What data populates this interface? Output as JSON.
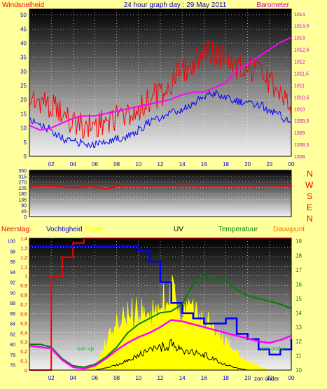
{
  "header": {
    "left_label": "Windsnelheid",
    "title": "24 hour graph day : 29 May 2011",
    "right_label": "Barometer"
  },
  "bottom_header": {
    "neerslag": "Neerslag",
    "vochtigheid": "Vochtigheid",
    "solar": "Solar",
    "uv": "UV",
    "temperatuur": "Temperatuur",
    "dauwpunt": "Dauwpunt"
  },
  "direction_letters": [
    "N",
    "W",
    "S",
    "E",
    "N"
  ],
  "annotations": {
    "sun_up": "sun up",
    "sun_down": "zon onder",
    "sun_down_bottom": "zon onder"
  },
  "colors": {
    "background": "#ffff9c",
    "wind": "#ff0000",
    "gust": "#0000ff",
    "barometer": "#ff00ff",
    "humidity": "#0000ff",
    "rain": "#ff0000",
    "solar": "#ffff00",
    "uv": "#000000",
    "temperature": "#008000",
    "dewpoint": "#ff00ff",
    "label_red": "#ff0000",
    "label_blue": "#0000cc",
    "label_magenta": "#cc00cc",
    "label_green": "#008000",
    "label_orange": "#ff6600"
  },
  "chart_data": [
    {
      "type": "line",
      "name": "wind-barometer",
      "x_ticks": [
        "02",
        "04",
        "06",
        "08",
        "10",
        "12",
        "14",
        "16",
        "18",
        "20",
        "22",
        "00"
      ],
      "y_left_ticks": [
        "0",
        "5",
        "10",
        "15",
        "20",
        "25",
        "30",
        "35",
        "40",
        "45",
        "50"
      ],
      "y_left_range": [
        0,
        52
      ],
      "y_right_ticks": [
        "1008",
        "1008,5",
        "1009",
        "1009,5",
        "1010",
        "1010,5",
        "1011",
        "1011,5",
        "1012",
        "1012,5",
        "1013",
        "1013,5",
        "1014"
      ],
      "y_right_range": [
        1008,
        1014.2
      ],
      "wind_avg_x": [
        0,
        1,
        2,
        3,
        4,
        5,
        6,
        7,
        8,
        9,
        10,
        11,
        12,
        13,
        14,
        15,
        16,
        17,
        18,
        19,
        20,
        21,
        22,
        23,
        24
      ],
      "wind_avg_y": [
        12,
        11,
        9,
        6,
        5,
        4,
        4,
        5,
        6,
        7,
        9,
        12,
        13,
        15,
        16,
        18,
        21,
        22,
        20,
        19,
        18,
        18,
        16,
        14,
        11
      ],
      "wind_gust_y": [
        20,
        19,
        17,
        14,
        11,
        10,
        10,
        12,
        13,
        14,
        16,
        19,
        21,
        25,
        29,
        32,
        38,
        35,
        33,
        31,
        30,
        28,
        25,
        21,
        17
      ],
      "barometer_y": [
        1009.3,
        1009.1,
        1009.2,
        1009.4,
        1009.6,
        1009.7,
        1009.7,
        1009.8,
        1009.9,
        1010.0,
        1010.1,
        1010.2,
        1010.3,
        1010.4,
        1010.6,
        1010.7,
        1010.7,
        1010.9,
        1011.1,
        1011.6,
        1011.9,
        1012.2,
        1012.5,
        1012.8,
        1013.0
      ]
    },
    {
      "type": "line",
      "name": "wind-direction",
      "y_ticks": [
        "0",
        "45",
        "90",
        "135",
        "180",
        "225",
        "270",
        "315",
        "360"
      ],
      "y_range": [
        0,
        360
      ],
      "direction_y": [
        230,
        232,
        235,
        230,
        225,
        230,
        232,
        215,
        235,
        240,
        238,
        240,
        238,
        240,
        242,
        240,
        238,
        240,
        238,
        240,
        238,
        240,
        240,
        238,
        235
      ]
    },
    {
      "type": "line",
      "name": "weather-bottom",
      "x_ticks": [
        "02",
        "04",
        "06",
        "08",
        "10",
        "12",
        "14",
        "16",
        "18",
        "20",
        "22",
        "00"
      ],
      "y_humidity_ticks": [
        "76",
        "78",
        "80",
        "82",
        "84",
        "86",
        "88",
        "90",
        "92",
        "94",
        "96",
        "98",
        "100"
      ],
      "y_humidity_range": [
        75,
        100.5
      ],
      "y_rain_ticks": [
        "0",
        "0,1",
        "0,2",
        "0,3",
        "0,4",
        "0,5",
        "0,6",
        "0,7",
        "0,8",
        "0,9",
        "1",
        "1,1",
        "1,2",
        "1,3",
        "1,4"
      ],
      "y_rain_range": [
        0,
        1.4
      ],
      "y_temp_ticks": [
        "10",
        "11",
        "12",
        "13",
        "14",
        "15",
        "16",
        "17",
        "18",
        "19"
      ],
      "y_temp_range": [
        10,
        19.2
      ],
      "humidity_y": [
        99,
        99,
        99,
        99,
        99,
        99,
        99,
        99,
        99,
        99,
        98,
        96,
        92,
        88,
        86,
        85,
        84,
        84,
        85,
        82,
        81,
        79,
        78,
        79,
        81
      ],
      "rain_y": [
        0,
        0,
        1.0,
        1.2,
        1.35,
        1.4,
        1.4,
        1.4,
        1.4,
        1.4,
        1.4,
        1.4,
        1.4,
        1.4,
        1.4,
        1.4,
        1.4,
        1.4,
        1.4,
        1.4,
        1.4,
        1.4,
        1.4,
        1.4,
        1.4
      ],
      "temperature_y": [
        11.8,
        11.8,
        11.6,
        10.8,
        10.3,
        10.2,
        10.4,
        10.9,
        11.6,
        12.6,
        13.2,
        13.6,
        14.0,
        14.1,
        14.6,
        16.0,
        16.6,
        16.4,
        16.2,
        15.6,
        15.2,
        15.0,
        14.8,
        14.6,
        14.3
      ],
      "dewpoint_y": [
        11.7,
        11.6,
        11.5,
        10.7,
        10.2,
        10.1,
        10.3,
        10.8,
        11.4,
        11.9,
        12.3,
        12.6,
        13.0,
        13.5,
        13.4,
        13.2,
        13.0,
        12.8,
        12.6,
        12.4,
        12.2,
        12.0,
        11.9,
        12.1,
        12.4
      ],
      "solar_y": [
        0,
        0,
        0,
        0,
        0,
        0,
        0.05,
        0.25,
        0.4,
        0.5,
        0.55,
        0.45,
        0.6,
        0.7,
        0.55,
        0.5,
        0.45,
        0.35,
        0.25,
        0.15,
        0.08,
        0.03,
        0,
        0,
        0
      ],
      "uv_y": [
        0,
        0,
        0,
        0,
        0,
        0,
        0,
        0.02,
        0.05,
        0.1,
        0.15,
        0.18,
        0.22,
        0.25,
        0.2,
        0.18,
        0.15,
        0.1,
        0.05,
        0.02,
        0,
        0,
        0,
        0,
        0
      ]
    }
  ]
}
